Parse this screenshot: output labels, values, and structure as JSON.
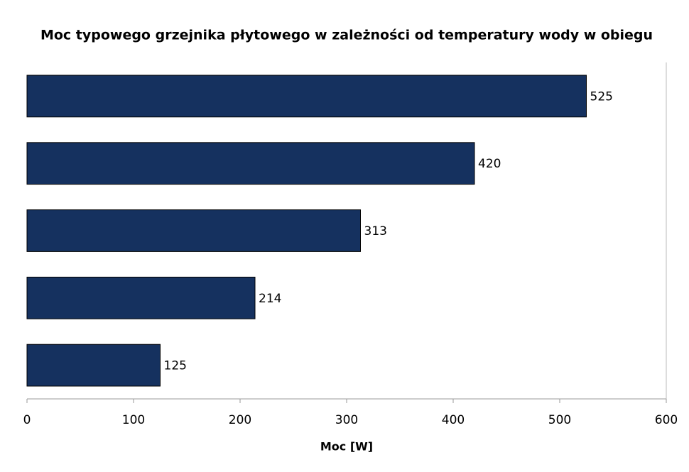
{
  "chart_data": {
    "type": "bar",
    "orientation": "horizontal",
    "title": "Moc typowego grzejnika płytowego w zależności od temperatury wody w obiegu",
    "x_label": "Moc [W]",
    "categories": [
      null,
      null,
      null,
      null,
      null
    ],
    "values": [
      525,
      420,
      313,
      214,
      125
    ],
    "color": "#15315f",
    "xlim": [
      0,
      600
    ],
    "xticks": [
      0,
      100,
      200,
      300,
      400,
      500,
      600
    ],
    "grid": false
  }
}
